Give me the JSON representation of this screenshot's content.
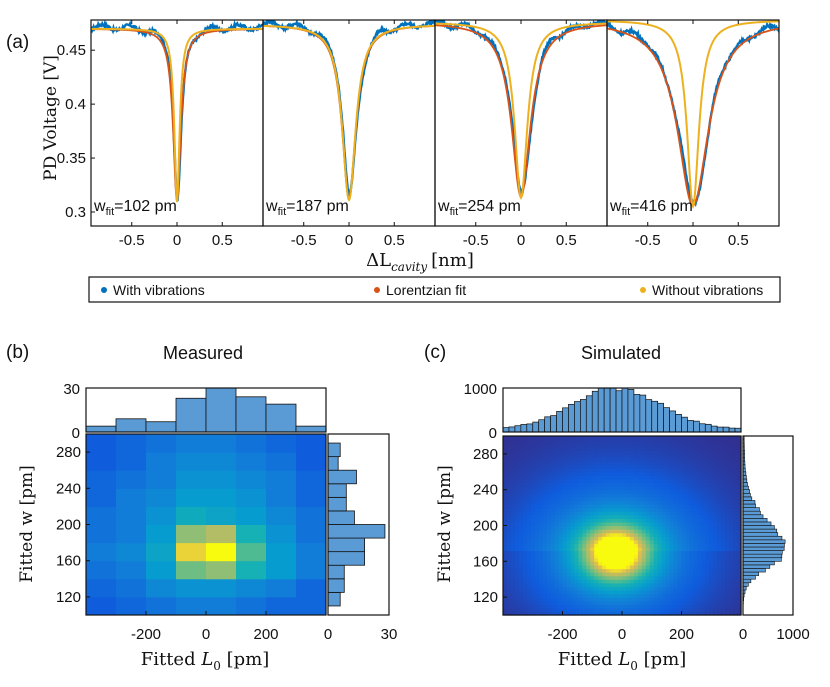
{
  "figure": {
    "panel_a_label": "(a)",
    "panel_b_label": "(b)",
    "panel_c_label": "(c)"
  },
  "chart_data": [
    {
      "id": "a",
      "type": "line",
      "ylabel": "PD Voltage [V]",
      "xlabel": "ΔL_cavity [nm]",
      "xlabel_main": "ΔL",
      "xlabel_sub": "cavity",
      "xlabel_unit": "[nm]",
      "xlim": [
        -0.95,
        0.95
      ],
      "ylim": [
        0.287,
        0.478
      ],
      "x_ticks": [
        -0.5,
        0,
        0.5
      ],
      "y_ticks": [
        0.3,
        0.35,
        0.4,
        0.45
      ],
      "y_tick_labels": [
        "0.3",
        "0.35",
        "0.4",
        "0.45"
      ],
      "colors": {
        "with": "#0072BD",
        "fit": "#D95319",
        "without": "#EDB120"
      },
      "legend": {
        "position": "bottom",
        "entries": [
          "With vibrations",
          "Lorentzian fit",
          "Without vibrations"
        ]
      },
      "subplots": [
        {
          "w_label": "w",
          "w_sub": "fit",
          "w_value": "=102 pm",
          "w_pm": 102,
          "baseline": 0.472,
          "min": 0.312,
          "sim_width_pm": 70
        },
        {
          "w_label": "w",
          "w_sub": "fit",
          "w_value": "=187 pm",
          "w_pm": 187,
          "baseline": 0.476,
          "min": 0.314,
          "sim_width_pm": 180
        },
        {
          "w_label": "w",
          "w_sub": "fit",
          "w_value": "=254 pm",
          "w_pm": 254,
          "baseline": 0.478,
          "min": 0.316,
          "sim_width_pm": 170
        },
        {
          "w_label": "w",
          "w_sub": "fit",
          "w_value": "=416 pm",
          "w_pm": 416,
          "baseline": 0.48,
          "min": 0.308,
          "sim_width_pm": 160
        }
      ]
    },
    {
      "id": "b",
      "type": "heatmap",
      "title": "Measured",
      "xlabel": "Fitted L0 [pm]",
      "xlabel_pre": "Fitted ",
      "xlabel_var": "L",
      "xlabel_sub": "0",
      "xlabel_unit": " [pm]",
      "ylabel": "Fitted w [pm]",
      "xlim": [
        -400,
        400
      ],
      "ylim": [
        100,
        300
      ],
      "x_ticks": [
        -200,
        0,
        200
      ],
      "y_ticks": [
        120,
        160,
        200,
        240,
        280
      ],
      "heat_x_edges": [
        -400,
        -300,
        -200,
        -100,
        0,
        100,
        200,
        300,
        400
      ],
      "heat_y_edges": [
        100,
        120,
        140,
        160,
        180,
        200,
        220,
        240,
        260,
        280,
        300
      ],
      "heat_values": [
        [
          0.15,
          0.2,
          0.25,
          0.3,
          0.3,
          0.25,
          0.2,
          0.2
        ],
        [
          0.2,
          0.25,
          0.35,
          0.4,
          0.4,
          0.35,
          0.3,
          0.2
        ],
        [
          0.25,
          0.3,
          0.45,
          0.75,
          0.8,
          0.6,
          0.45,
          0.3
        ],
        [
          0.3,
          0.35,
          0.5,
          0.95,
          1.0,
          0.7,
          0.45,
          0.3
        ],
        [
          0.25,
          0.3,
          0.45,
          0.8,
          0.85,
          0.6,
          0.4,
          0.25
        ],
        [
          0.25,
          0.3,
          0.4,
          0.55,
          0.5,
          0.45,
          0.35,
          0.25
        ],
        [
          0.2,
          0.3,
          0.35,
          0.45,
          0.45,
          0.4,
          0.3,
          0.2
        ],
        [
          0.2,
          0.25,
          0.3,
          0.4,
          0.4,
          0.35,
          0.3,
          0.2
        ],
        [
          0.15,
          0.2,
          0.3,
          0.35,
          0.35,
          0.3,
          0.25,
          0.15
        ],
        [
          0.15,
          0.2,
          0.25,
          0.3,
          0.3,
          0.25,
          0.2,
          0.15
        ]
      ],
      "top_hist": {
        "ylim": [
          0,
          30
        ],
        "y_ticks": [
          0,
          30
        ],
        "values": [
          4,
          9,
          7,
          23,
          30,
          24,
          19,
          4
        ]
      },
      "side_hist": {
        "xlim": [
          0,
          30
        ],
        "x_ticks": [
          0,
          30
        ],
        "bin_edges": [
          110,
          125,
          140,
          155,
          170,
          185,
          200,
          215,
          230,
          245,
          260,
          275,
          290
        ],
        "values": [
          6,
          8,
          8,
          18,
          18,
          28,
          13,
          9,
          9,
          14,
          5,
          6
        ]
      }
    },
    {
      "id": "c",
      "type": "heatmap",
      "title": "Simulated",
      "xlabel": "Fitted L0 [pm]",
      "xlabel_pre": "Fitted ",
      "xlabel_var": "L",
      "xlabel_sub": "0",
      "xlabel_unit": " [pm]",
      "ylabel": "Fitted w [pm]",
      "xlim": [
        -400,
        400
      ],
      "ylim": [
        100,
        300
      ],
      "x_ticks": [
        -200,
        0,
        200
      ],
      "y_ticks": [
        120,
        160,
        200,
        240,
        280
      ],
      "peak": {
        "x": -20,
        "y": 170
      },
      "top_hist": {
        "ylim": [
          0,
          1000
        ],
        "y_ticks": [
          0,
          1000
        ],
        "bin_width_pm": 20,
        "peak": 1000
      },
      "side_hist": {
        "xlim": [
          0,
          1000
        ],
        "x_ticks": [
          0,
          1000
        ],
        "peak": 800
      }
    }
  ]
}
